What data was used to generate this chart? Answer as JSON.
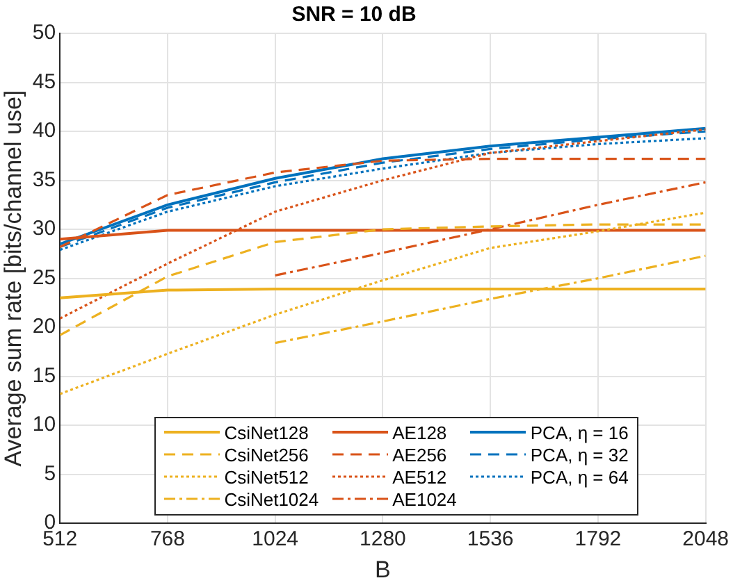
{
  "chart_data": {
    "type": "line",
    "title": "SNR = 10 dB",
    "xlabel": "B",
    "ylabel": "Average sum rate [bits/channel use]",
    "x": [
      512,
      768,
      1024,
      1280,
      1536,
      1792,
      2048
    ],
    "xlim": [
      512,
      2048
    ],
    "xticks": [
      512,
      768,
      1024,
      1280,
      1536,
      1792,
      2048
    ],
    "ylim": [
      0,
      50
    ],
    "yticks": [
      0,
      5,
      10,
      15,
      20,
      25,
      30,
      35,
      40,
      45,
      50
    ],
    "grid": true,
    "legend": "bottom",
    "marker": "none",
    "series": [
      {
        "name": "CsiNet128",
        "color": "#edb120",
        "line_style": "solid",
        "values": [
          23,
          23.8,
          23.9,
          23.9,
          23.9,
          23.9,
          23.9
        ]
      },
      {
        "name": "CsiNet256",
        "color": "#edb120",
        "line_style": "dashed",
        "values": [
          19.2,
          25.2,
          28.7,
          30,
          30.3,
          30.5,
          30.5
        ]
      },
      {
        "name": "CsiNet512",
        "color": "#edb120",
        "line_style": "dotted",
        "values": [
          13.2,
          17.3,
          21.3,
          24.8,
          28.1,
          29.8,
          31.7
        ]
      },
      {
        "name": "CsiNet1024",
        "color": "#edb120",
        "line_style": "dashdot",
        "values": [
          null,
          null,
          18.4,
          20.6,
          22.9,
          25,
          27.3
        ]
      },
      {
        "name": "AE128",
        "color": "#d95319",
        "line_style": "solid",
        "values": [
          29,
          29.9,
          29.9,
          29.9,
          29.9,
          29.9,
          29.9
        ]
      },
      {
        "name": "AE256",
        "color": "#d95319",
        "line_style": "dashed",
        "values": [
          28.2,
          33.5,
          35.8,
          37,
          37.2,
          37.2,
          37.2
        ]
      },
      {
        "name": "AE512",
        "color": "#d95319",
        "line_style": "dotted",
        "values": [
          20.9,
          26.5,
          31.8,
          35,
          37.8,
          39,
          40.2
        ]
      },
      {
        "name": "AE1024",
        "color": "#d95319",
        "line_style": "dashdot",
        "values": [
          null,
          null,
          25.3,
          27.6,
          30,
          32.5,
          34.8
        ]
      },
      {
        "name": "PCA, η = 16",
        "color": "#0072bd",
        "line_style": "solid",
        "values": [
          28.5,
          32.5,
          35.2,
          37.2,
          38.5,
          39.4,
          40.3
        ]
      },
      {
        "name": "PCA, η = 32",
        "color": "#0072bd",
        "line_style": "dashed",
        "values": [
          28.2,
          32.2,
          34.8,
          36.8,
          38.2,
          39.2,
          40
        ]
      },
      {
        "name": "PCA, η = 64",
        "color": "#0072bd",
        "line_style": "dotted",
        "values": [
          27.9,
          31.8,
          34.4,
          36.2,
          37.8,
          38.7,
          39.3
        ]
      }
    ]
  }
}
